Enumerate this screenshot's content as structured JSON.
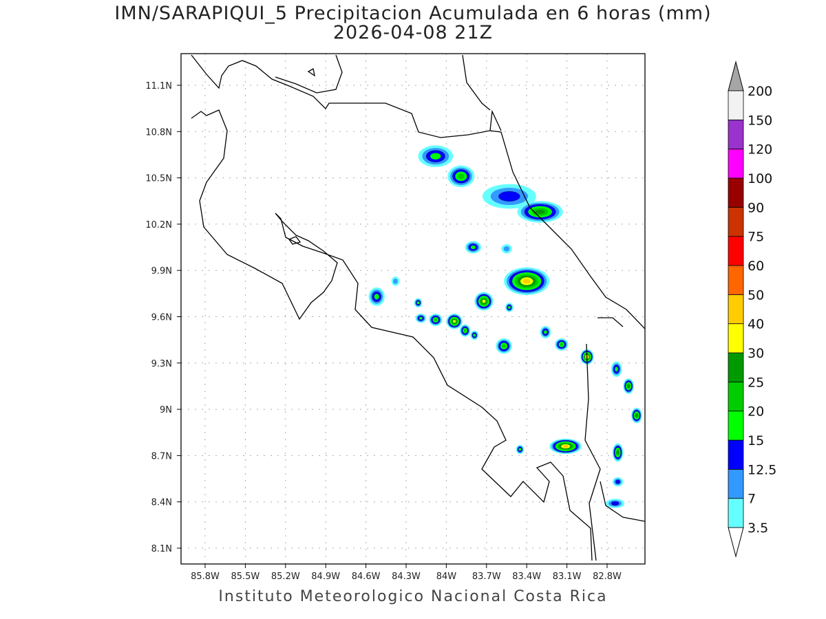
{
  "title": {
    "line1": "IMN/SARAPIQUI_5 Precipitacion Acumulada en 6 horas (mm)",
    "line2": "2026-04-08 21Z"
  },
  "footer": "Instituto Meteorologico Nacional Costa Rica",
  "map": {
    "lon_ticks": [
      "85.8W",
      "85.5W",
      "85.2W",
      "84.9W",
      "84.6W",
      "84.3W",
      "84W",
      "83.7W",
      "83.4W",
      "83.1W",
      "82.8W"
    ],
    "lon_values": [
      85.8,
      85.5,
      85.2,
      84.9,
      84.6,
      84.3,
      84.0,
      83.7,
      83.4,
      83.1,
      82.8
    ],
    "lat_ticks": [
      "11.1N",
      "10.8N",
      "10.5N",
      "10.2N",
      "9.9N",
      "9.6N",
      "9.3N",
      "9N",
      "8.7N",
      "8.4N",
      "8.1N"
    ],
    "lat_values": [
      11.1,
      10.8,
      10.5,
      10.2,
      9.9,
      9.6,
      9.3,
      9.0,
      8.7,
      8.4,
      8.1
    ],
    "precip_cells": [
      {
        "lonW": 84.08,
        "lat": 10.64,
        "max": 15,
        "rx": 0.13,
        "ry": 0.07
      },
      {
        "lonW": 83.89,
        "lat": 10.51,
        "max": 20,
        "rx": 0.1,
        "ry": 0.07
      },
      {
        "lonW": 83.53,
        "lat": 10.38,
        "max": 12.5,
        "rx": 0.2,
        "ry": 0.08
      },
      {
        "lonW": 83.3,
        "lat": 10.28,
        "max": 25,
        "rx": 0.17,
        "ry": 0.07
      },
      {
        "lonW": 83.8,
        "lat": 10.05,
        "max": 15,
        "rx": 0.06,
        "ry": 0.04
      },
      {
        "lonW": 83.55,
        "lat": 10.04,
        "max": 7,
        "rx": 0.04,
        "ry": 0.03
      },
      {
        "lonW": 83.4,
        "lat": 9.83,
        "max": 40,
        "rx": 0.17,
        "ry": 0.09
      },
      {
        "lonW": 83.72,
        "lat": 9.7,
        "max": 30,
        "rx": 0.07,
        "ry": 0.06
      },
      {
        "lonW": 84.52,
        "lat": 9.73,
        "max": 15,
        "rx": 0.06,
        "ry": 0.06
      },
      {
        "lonW": 84.38,
        "lat": 9.83,
        "max": 7,
        "rx": 0.03,
        "ry": 0.03
      },
      {
        "lonW": 84.21,
        "lat": 9.69,
        "max": 15,
        "rx": 0.03,
        "ry": 0.03
      },
      {
        "lonW": 84.19,
        "lat": 9.59,
        "max": 15,
        "rx": 0.04,
        "ry": 0.03
      },
      {
        "lonW": 84.08,
        "lat": 9.58,
        "max": 20,
        "rx": 0.05,
        "ry": 0.04
      },
      {
        "lonW": 83.94,
        "lat": 9.57,
        "max": 30,
        "rx": 0.06,
        "ry": 0.05
      },
      {
        "lonW": 83.86,
        "lat": 9.51,
        "max": 20,
        "rx": 0.04,
        "ry": 0.04
      },
      {
        "lonW": 83.79,
        "lat": 9.48,
        "max": 15,
        "rx": 0.03,
        "ry": 0.03
      },
      {
        "lonW": 83.53,
        "lat": 9.66,
        "max": 15,
        "rx": 0.03,
        "ry": 0.03
      },
      {
        "lonW": 83.57,
        "lat": 9.41,
        "max": 20,
        "rx": 0.06,
        "ry": 0.05
      },
      {
        "lonW": 83.26,
        "lat": 9.5,
        "max": 15,
        "rx": 0.04,
        "ry": 0.04
      },
      {
        "lonW": 83.14,
        "lat": 9.42,
        "max": 20,
        "rx": 0.05,
        "ry": 0.04
      },
      {
        "lonW": 82.95,
        "lat": 9.34,
        "max": 40,
        "rx": 0.05,
        "ry": 0.05
      },
      {
        "lonW": 82.73,
        "lat": 9.26,
        "max": 15,
        "rx": 0.04,
        "ry": 0.05
      },
      {
        "lonW": 82.64,
        "lat": 9.15,
        "max": 25,
        "rx": 0.04,
        "ry": 0.05
      },
      {
        "lonW": 82.58,
        "lat": 8.96,
        "max": 25,
        "rx": 0.04,
        "ry": 0.05
      },
      {
        "lonW": 83.11,
        "lat": 8.76,
        "max": 40,
        "rx": 0.12,
        "ry": 0.05
      },
      {
        "lonW": 83.45,
        "lat": 8.74,
        "max": 15,
        "rx": 0.03,
        "ry": 0.03
      },
      {
        "lonW": 82.72,
        "lat": 8.72,
        "max": 25,
        "rx": 0.04,
        "ry": 0.06
      },
      {
        "lonW": 82.72,
        "lat": 8.53,
        "max": 12.5,
        "rx": 0.04,
        "ry": 0.03
      },
      {
        "lonW": 82.74,
        "lat": 8.39,
        "max": 12.5,
        "rx": 0.07,
        "ry": 0.03
      }
    ]
  },
  "colorbar": {
    "levels": [
      "3.5",
      "7",
      "12.5",
      "15",
      "20",
      "25",
      "30",
      "40",
      "50",
      "60",
      "75",
      "90",
      "100",
      "120",
      "150",
      "200"
    ],
    "thresholds": [
      3.5,
      7,
      12.5,
      15,
      20,
      25,
      30,
      40,
      50,
      60,
      75,
      90,
      100,
      120,
      150,
      200
    ],
    "colors": [
      "#66ffff",
      "#3399ff",
      "#0000ff",
      "#00ff00",
      "#00cc00",
      "#009900",
      "#ffff00",
      "#ffcc00",
      "#ff6600",
      "#ff0000",
      "#cc3300",
      "#990000",
      "#ff00ff",
      "#9933cc",
      "#f2f2f2"
    ],
    "over_color": "#a6a6a6"
  }
}
